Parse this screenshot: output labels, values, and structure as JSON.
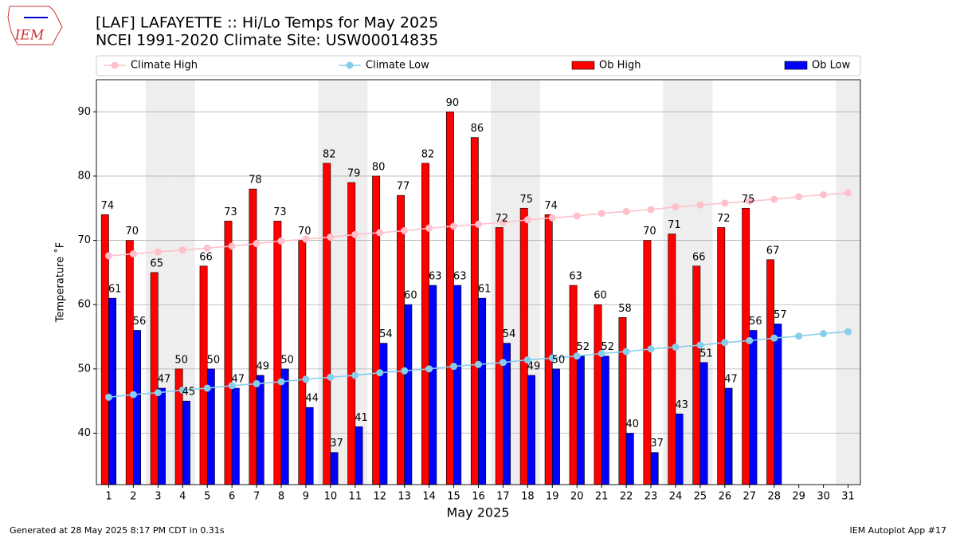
{
  "logo": "IEM",
  "footer": {
    "left": "Generated at 28 May 2025 8:17 PM CDT in 0.31s",
    "right": "IEM Autoplot App #17"
  },
  "chart_data": {
    "type": "bar",
    "title": "[LAF] LAFAYETTE :: Hi/Lo Temps for May 2025",
    "subtitle": "NCEI 1991-2020 Climate Site: USW00014835",
    "x_label": "May 2025",
    "y_label": "Temperature ˚F",
    "x": [
      1,
      2,
      3,
      4,
      5,
      6,
      7,
      8,
      9,
      10,
      11,
      12,
      13,
      14,
      15,
      16,
      17,
      18,
      19,
      20,
      21,
      22,
      23,
      24,
      25,
      26,
      27,
      28,
      29,
      30,
      31
    ],
    "xlim": [
      0.5,
      31.5
    ],
    "xticks": [
      1,
      2,
      3,
      4,
      5,
      6,
      7,
      8,
      9,
      10,
      11,
      12,
      13,
      14,
      15,
      16,
      17,
      18,
      19,
      20,
      21,
      22,
      23,
      24,
      25,
      26,
      27,
      28,
      29,
      30,
      31
    ],
    "ylim": [
      32,
      95
    ],
    "yticks": [
      40,
      50,
      60,
      70,
      80,
      90
    ],
    "grid": true,
    "shaded_days": [
      3,
      4,
      10,
      11,
      17,
      18,
      24,
      25,
      31
    ],
    "shade_color": "#eeeeee",
    "series": [
      {
        "name": "Climate High",
        "type": "line",
        "color": "#ffc0cb",
        "values": [
          67.6,
          67.9,
          68.2,
          68.5,
          68.8,
          69.1,
          69.5,
          69.9,
          70.2,
          70.5,
          70.9,
          71.2,
          71.5,
          71.9,
          72.2,
          72.5,
          72.8,
          73.2,
          73.5,
          73.8,
          74.2,
          74.5,
          74.8,
          75.2,
          75.5,
          75.8,
          76.1,
          76.4,
          76.8,
          77.1,
          77.4
        ]
      },
      {
        "name": "Climate Low",
        "type": "line",
        "color": "#87ceeb",
        "values": [
          45.6,
          46.0,
          46.3,
          46.7,
          47.0,
          47.4,
          47.7,
          48.0,
          48.4,
          48.7,
          49.0,
          49.4,
          49.7,
          50.0,
          50.4,
          50.7,
          51.0,
          51.4,
          51.7,
          52.0,
          52.4,
          52.7,
          53.1,
          53.4,
          53.7,
          54.1,
          54.4,
          54.8,
          55.1,
          55.5,
          55.8
        ]
      },
      {
        "name": "Ob High",
        "type": "bar",
        "color": "#ff0000",
        "values": [
          74,
          70,
          65,
          50,
          66,
          73,
          78,
          73,
          70,
          82,
          79,
          80,
          77,
          82,
          90,
          86,
          72,
          75,
          74,
          63,
          60,
          58,
          70,
          71,
          66,
          72,
          75,
          67,
          null,
          null,
          null
        ]
      },
      {
        "name": "Ob Low",
        "type": "bar",
        "color": "#0000ff",
        "values": [
          61,
          56,
          47,
          45,
          50,
          47,
          49,
          50,
          44,
          37,
          41,
          54,
          60,
          63,
          63,
          61,
          54,
          49,
          50,
          52,
          52,
          40,
          37,
          43,
          51,
          47,
          56,
          57,
          null,
          null,
          null
        ]
      }
    ]
  }
}
